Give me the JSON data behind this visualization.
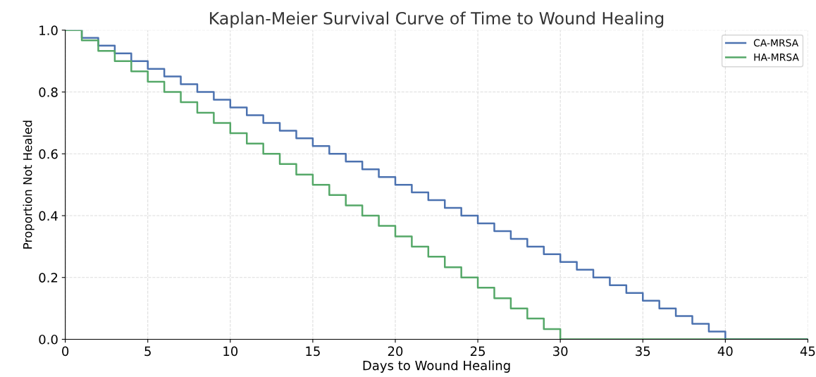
{
  "chart_data": {
    "type": "step",
    "title": "Kaplan-Meier Survival Curve of Time to Wound Healing",
    "xlabel": "Days to Wound Healing",
    "ylabel": "Proportion Not Healed",
    "xlim": [
      0,
      45
    ],
    "ylim": [
      0,
      1
    ],
    "xticks": [
      0,
      5,
      10,
      15,
      20,
      25,
      30,
      35,
      40,
      45
    ],
    "yticks": [
      {
        "value": 0,
        "label": "0.0"
      },
      {
        "value": 0.2,
        "label": "0.2"
      },
      {
        "value": 0.4,
        "label": "0.4"
      },
      {
        "value": 0.6,
        "label": "0.6"
      },
      {
        "value": 0.8,
        "label": "0.8"
      },
      {
        "value": 1,
        "label": "1.0"
      }
    ],
    "grid": true,
    "legend": "top right",
    "line_style": "solid",
    "marker": "none",
    "series": [
      {
        "name": "CA-MRSA",
        "color": "#4c72b0",
        "x": [
          0,
          1,
          2,
          3,
          4,
          5,
          6,
          7,
          8,
          9,
          10,
          11,
          12,
          13,
          14,
          15,
          16,
          17,
          18,
          19,
          20,
          21,
          22,
          23,
          24,
          25,
          26,
          27,
          28,
          29,
          30,
          31,
          32,
          33,
          34,
          35,
          36,
          37,
          38,
          39,
          40,
          45
        ],
        "values": [
          1,
          0.975,
          0.95,
          0.925,
          0.9,
          0.875,
          0.85,
          0.825,
          0.8,
          0.775,
          0.75,
          0.725,
          0.7,
          0.675,
          0.65,
          0.625,
          0.6,
          0.575,
          0.55,
          0.525,
          0.5,
          0.475,
          0.45,
          0.425,
          0.4,
          0.375,
          0.35,
          0.325,
          0.3,
          0.275,
          0.25,
          0.225,
          0.2,
          0.175,
          0.15,
          0.125,
          0.1,
          0.075,
          0.05,
          0.025,
          0,
          0
        ]
      },
      {
        "name": "HA-MRSA",
        "color": "#55a868",
        "x": [
          0,
          1,
          2,
          3,
          4,
          5,
          6,
          7,
          8,
          9,
          10,
          11,
          12,
          13,
          14,
          15,
          16,
          17,
          18,
          19,
          20,
          21,
          22,
          23,
          24,
          25,
          26,
          27,
          28,
          29,
          30,
          45
        ],
        "values": [
          1,
          0.967,
          0.933,
          0.9,
          0.867,
          0.833,
          0.8,
          0.767,
          0.733,
          0.7,
          0.667,
          0.633,
          0.6,
          0.567,
          0.533,
          0.5,
          0.467,
          0.433,
          0.4,
          0.367,
          0.333,
          0.3,
          0.267,
          0.233,
          0.2,
          0.167,
          0.133,
          0.1,
          0.067,
          0.033,
          0,
          0
        ]
      }
    ]
  }
}
